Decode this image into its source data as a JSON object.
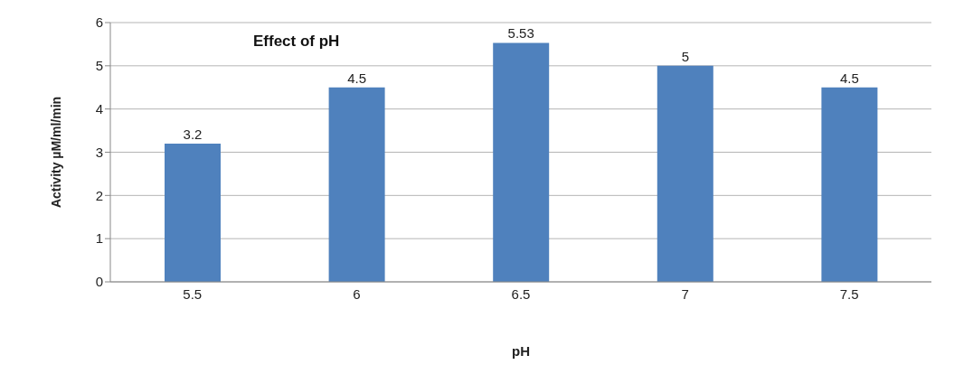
{
  "chart_data": {
    "type": "bar",
    "title": "Effect of pH",
    "xlabel": "pH",
    "ylabel": "Activity µM/ml/min",
    "categories": [
      "5.5",
      "6",
      "6.5",
      "7",
      "7.5"
    ],
    "values": [
      3.2,
      4.5,
      5.53,
      5,
      4.5
    ],
    "color": "#4f81bd",
    "ylim": [
      0,
      6
    ],
    "yticks": [
      0,
      1,
      2,
      3,
      4,
      5,
      6
    ],
    "grid": "y",
    "data_labels": true
  }
}
